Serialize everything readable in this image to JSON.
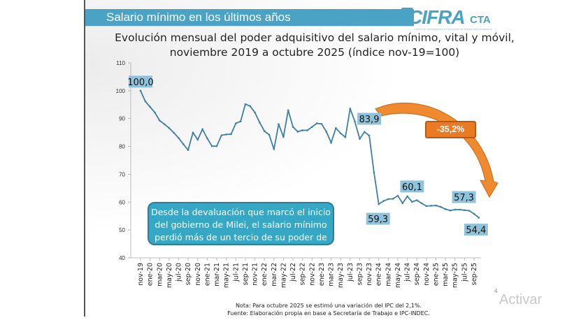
{
  "slide": {
    "header_title": "Salario mínimo en los últimos años",
    "logo": {
      "main": "CIFRA",
      "suffix": "CTA",
      "subtitle": "Centro de Investigación y Formación de la República Argentina"
    },
    "chart_title_line1": "Evolución mensual del poder adquisitivo del salario mínimo, vital y móvil,",
    "chart_title_line2": "noviembre 2019 a octubre 2025 (índice nov-19=100)",
    "callout_text": "Desde la devaluación que marcó el inicio del gobierno de Milei, el salario mínimo perdió más de un tercio de su poder de compra",
    "change_badge": "-35,2%",
    "note_line1": "Nota: Para octubre 2025 se estimó una variación del IPC del 2,1%.",
    "note_line2": "Fuente: Elaboración propia en base a Secretaría de Trabajo e IPC-INDEC.",
    "page_number": "4",
    "watermark": "Activar"
  },
  "colors": {
    "header": "#4aa3c5",
    "line": "#3d7fa6",
    "data_label_bg": "#8fc3dc",
    "callout": "#36a7c4",
    "arrow": "#ea7a24"
  },
  "chart_data": {
    "type": "line",
    "title": "Evolución mensual del poder adquisitivo del salario mínimo, vital y móvil, noviembre 2019 a octubre 2025 (índice nov-19=100)",
    "xlabel": "",
    "ylabel": "",
    "ylim": [
      40,
      110
    ],
    "yticks": [
      40,
      50,
      60,
      70,
      80,
      90,
      100,
      110
    ],
    "grid": false,
    "x": [
      "nov-19",
      "dic-19",
      "ene-20",
      "feb-20",
      "mar-20",
      "abr-20",
      "may-20",
      "jun-20",
      "jul-20",
      "ago-20",
      "sep-20",
      "oct-20",
      "nov-20",
      "dic-20",
      "ene-21",
      "feb-21",
      "mar-21",
      "abr-21",
      "may-21",
      "jun-21",
      "jul-21",
      "ago-21",
      "sep-21",
      "oct-21",
      "nov-21",
      "dic-21",
      "ene-22",
      "feb-22",
      "mar-22",
      "abr-22",
      "may-22",
      "jun-22",
      "jul-22",
      "ago-22",
      "sep-22",
      "oct-22",
      "nov-22",
      "dic-22",
      "ene-23",
      "feb-23",
      "mar-23",
      "abr-23",
      "may-23",
      "jun-23",
      "jul-23",
      "ago-23",
      "sep-23",
      "oct-23",
      "nov-23",
      "dic-23",
      "ene-24",
      "feb-24",
      "mar-24",
      "abr-24",
      "may-24",
      "jun-24",
      "jul-24",
      "ago-24",
      "sep-24",
      "oct-24",
      "nov-24",
      "dic-24",
      "ene-25",
      "feb-25",
      "mar-25",
      "abr-25",
      "may-25",
      "jun-25",
      "jul-25",
      "ago-25",
      "sep-25",
      "oct-25"
    ],
    "tick_labels": [
      "nov-19",
      "ene-20",
      "mar-20",
      "may-20",
      "jul-20",
      "sep-20",
      "nov-20",
      "ene-21",
      "mar-21",
      "may-21",
      "jul-21",
      "sep-21",
      "nov-21",
      "ene-22",
      "mar-22",
      "may-22",
      "jul-22",
      "sep-22",
      "nov-22",
      "ene-23",
      "mar-23",
      "may-23",
      "jul-23",
      "sep-23",
      "nov-23",
      "ene-24",
      "mar-24",
      "may-24",
      "jul-24",
      "sep-24",
      "nov-24",
      "ene-25",
      "mar-25",
      "may-25",
      "jul-25",
      "sep-25"
    ],
    "series": [
      {
        "name": "Índice salario mínimo real (nov-19=100)",
        "values": [
          100.0,
          96.2,
          94.2,
          92.2,
          89.3,
          88.0,
          86.6,
          84.9,
          83.0,
          80.8,
          78.7,
          85.0,
          82.4,
          86.2,
          82.9,
          80.1,
          80.1,
          84.0,
          84.3,
          84.4,
          88.3,
          89.0,
          95.2,
          94.5,
          92.2,
          88.6,
          85.5,
          84.2,
          79.0,
          88.0,
          83.4,
          93.0,
          87.0,
          85.3,
          85.8,
          85.8,
          87.0,
          88.3,
          88.1,
          85.3,
          81.3,
          86.6,
          84.7,
          83.3,
          93.6,
          88.9,
          82.7,
          85.2,
          83.9,
          70.7,
          59.3,
          60.4,
          61.1,
          61.2,
          62.3,
          59.6,
          62.1,
          60.1,
          60.7,
          59.6,
          58.6,
          58.7,
          58.8,
          58.3,
          57.5,
          57.0,
          57.3,
          57.3,
          57.1,
          56.9,
          55.8,
          54.4
        ]
      }
    ],
    "data_labels": [
      {
        "x": "nov-19",
        "text": "100,0"
      },
      {
        "x": "nov-23",
        "text": "83,9"
      },
      {
        "x": "ene-24",
        "text": "59,3"
      },
      {
        "x": "ago-24",
        "text": "60,1"
      },
      {
        "x": "jun-25",
        "text": "57,3"
      },
      {
        "x": "oct-25",
        "text": "54,4"
      }
    ],
    "annotations": [
      "-35,2%",
      "Desde la devaluación que marcó el inicio del gobierno de Milei, el salario mínimo perdió más de un tercio de su poder de compra"
    ],
    "legend": "none"
  }
}
